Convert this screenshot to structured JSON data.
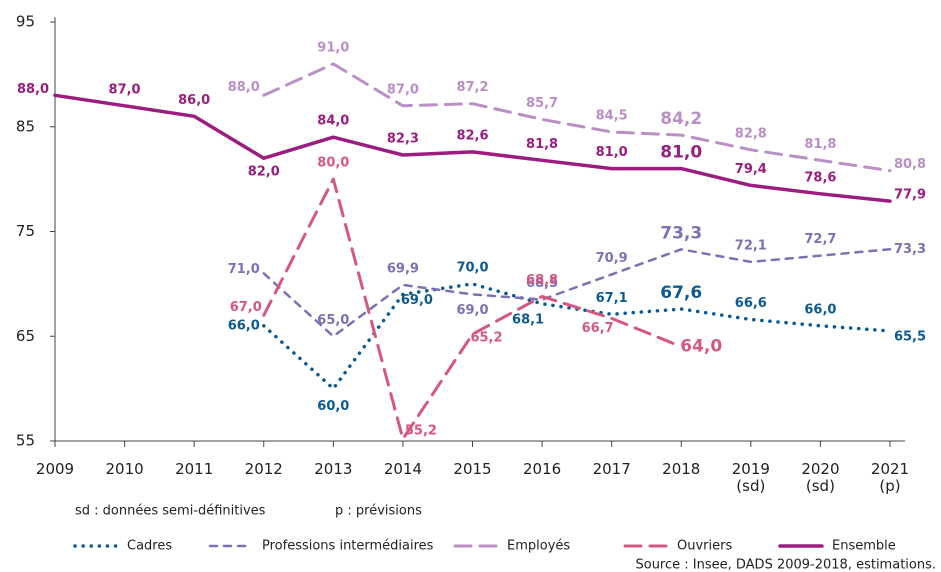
{
  "chart_data": {
    "type": "line",
    "categories": [
      "2009",
      "2010",
      "2011",
      "2012",
      "2013",
      "2014",
      "2015",
      "2016",
      "2017",
      "2018",
      "2019\n(sd)",
      "2020\n(sd)",
      "2021\n(p)"
    ],
    "ylim": [
      55,
      95
    ],
    "yticks": [
      55,
      65,
      75,
      85,
      95
    ],
    "series": [
      {
        "name": "Cadres",
        "color": "#0b5a93",
        "values": [
          null,
          null,
          null,
          66.0,
          60.0,
          69.0,
          70.0,
          68.1,
          67.1,
          67.6,
          66.6,
          66.0,
          65.5
        ],
        "value_labels": [
          null,
          null,
          null,
          "66,0",
          "60,0",
          "69,0",
          "70,0",
          "68,1",
          "67,1",
          "67,6",
          "66,6",
          "66,0",
          "65,5"
        ]
      },
      {
        "name": "Professions intermédiaires",
        "color": "#7d70b3",
        "values": [
          null,
          null,
          null,
          71.0,
          65.0,
          69.9,
          69.0,
          68.5,
          70.9,
          73.3,
          72.1,
          72.7,
          73.3
        ],
        "value_labels": [
          null,
          null,
          null,
          "71,0",
          "65,0",
          "69,9",
          "69,0",
          "68,5",
          "70,9",
          "73,3",
          "72,1",
          "72,7",
          "73,3"
        ]
      },
      {
        "name": "Employés",
        "color": "#b98fc6",
        "values": [
          null,
          null,
          null,
          88.0,
          91.0,
          87.0,
          87.2,
          85.7,
          84.5,
          84.2,
          82.8,
          81.8,
          80.8
        ],
        "value_labels": [
          null,
          null,
          null,
          "88,0",
          "91,0",
          "87,0",
          "87,2",
          "85,7",
          "84,5",
          "84,2",
          "82,8",
          "81,8",
          "80,8"
        ]
      },
      {
        "name": "Ouvriers",
        "color": "#d6587f",
        "values": [
          null,
          null,
          null,
          67.0,
          80.0,
          55.2,
          65.2,
          68.8,
          66.7,
          64.0,
          null,
          null,
          null
        ],
        "value_labels": [
          null,
          null,
          null,
          "67,0",
          "80,0",
          "55,2",
          "65,2",
          "68,8",
          "66,7",
          "64,0",
          null,
          null,
          null
        ]
      },
      {
        "name": "Ensemble",
        "color": "#9b1d7f",
        "values": [
          88.0,
          87.0,
          86.0,
          82.0,
          84.0,
          82.3,
          82.6,
          81.8,
          81.0,
          81.0,
          79.4,
          78.6,
          77.9
        ],
        "value_labels": [
          "88,0",
          "87,0",
          "86,0",
          "82,0",
          "84,0",
          "82,3",
          "82,6",
          "81,8",
          "81,0",
          "81,0",
          "79,4",
          "78,6",
          "77,9"
        ]
      }
    ],
    "notes": [
      "sd : données semi-définitives",
      "p : prévisions"
    ],
    "source": "Source : Insee, DADS 2009-2018, estimations."
  }
}
